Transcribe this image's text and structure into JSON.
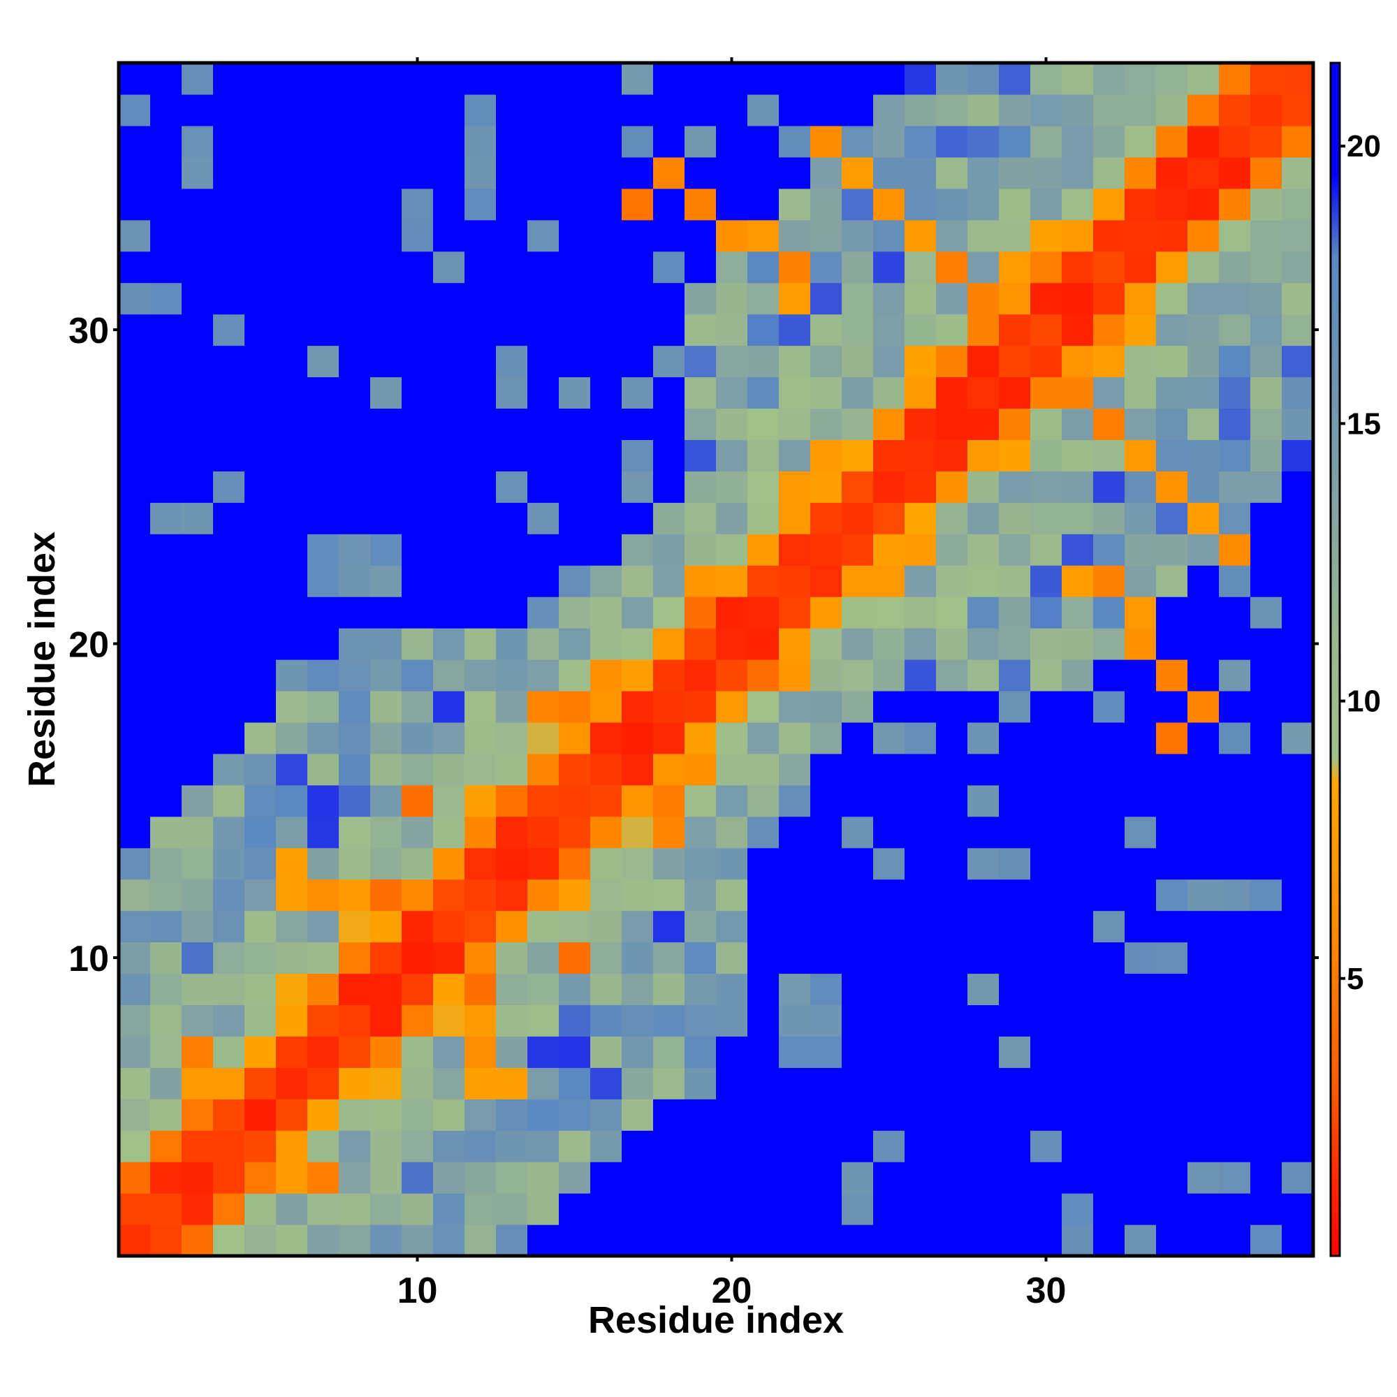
{
  "chart_data": {
    "type": "heatmap",
    "title": "",
    "xlabel": "Residue index",
    "ylabel": "Residue index",
    "n": 38,
    "xlim": [
      0.5,
      38.5
    ],
    "ylim": [
      0.5,
      38.5
    ],
    "x_ticks": [
      10,
      20,
      30
    ],
    "y_ticks": [
      10,
      20,
      30
    ],
    "colorbar": {
      "range": [
        0,
        21.5
      ],
      "ticks": [
        5,
        10,
        15,
        20
      ],
      "stops": [
        {
          "value": 0,
          "color": "#ff0000"
        },
        {
          "value": 3,
          "color": "#ff5a00"
        },
        {
          "value": 6,
          "color": "#ff8c00"
        },
        {
          "value": 8.5,
          "color": "#ffa500"
        },
        {
          "value": 9,
          "color": "#a0c08a"
        },
        {
          "value": 11,
          "color": "#9ab88e"
        },
        {
          "value": 14,
          "color": "#7f9fa6"
        },
        {
          "value": 18,
          "color": "#5b88c0"
        },
        {
          "value": 19.5,
          "color": "#0000ff"
        },
        {
          "value": 21.5,
          "color": "#0000ff"
        }
      ]
    },
    "band_dark_orange": [
      [
        1,
        3
      ],
      [
        2,
        4
      ],
      [
        3,
        5
      ],
      [
        4,
        5
      ],
      [
        5,
        6
      ],
      [
        7,
        9
      ],
      [
        8,
        10
      ],
      [
        10,
        12
      ],
      [
        11,
        13
      ],
      [
        12,
        14
      ],
      [
        13,
        15
      ],
      [
        14,
        16
      ],
      [
        19,
        21
      ],
      [
        21,
        24
      ],
      [
        23,
        26
      ],
      [
        25,
        28
      ],
      [
        26,
        29
      ],
      [
        27,
        29
      ],
      [
        28,
        30
      ],
      [
        30,
        32
      ],
      [
        33,
        35
      ],
      [
        34,
        36
      ],
      [
        35,
        37
      ],
      [
        36,
        38
      ],
      [
        37,
        38
      ]
    ],
    "off_diagonal_contacts": [
      [
        3,
        7
      ],
      [
        6,
        12
      ],
      [
        6,
        13
      ],
      [
        7,
        12
      ],
      [
        8,
        12
      ],
      [
        9,
        12
      ],
      [
        10,
        15
      ],
      [
        11,
        13
      ],
      [
        14,
        18
      ],
      [
        15,
        18
      ],
      [
        16,
        19
      ],
      [
        17,
        34
      ],
      [
        18,
        35
      ],
      [
        19,
        34
      ],
      [
        20,
        33
      ],
      [
        21,
        33
      ],
      [
        22,
        31
      ],
      [
        22,
        32
      ],
      [
        23,
        36
      ],
      [
        24,
        35
      ],
      [
        25,
        34
      ],
      [
        26,
        33
      ],
      [
        27,
        32
      ],
      [
        28,
        31
      ],
      [
        29,
        30
      ],
      [
        30,
        31
      ]
    ]
  }
}
